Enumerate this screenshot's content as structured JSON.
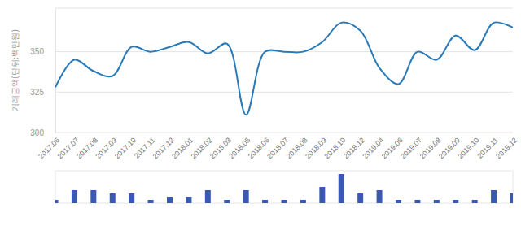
{
  "chart_data": [
    {
      "type": "line",
      "y_label": "거래금액(단위:백만원)",
      "categories": [
        "2017.06",
        "2017.07",
        "2017.08",
        "2017.09",
        "2017.10",
        "2017.11",
        "2017.12",
        "2018.01",
        "2018.02",
        "2018.03",
        "2018.05",
        "2018.06",
        "2018.07",
        "2018.08",
        "2018.09",
        "2018.10",
        "2018.12",
        "2019.04",
        "2019.06",
        "2019.07",
        "2019.08",
        "2019.09",
        "2019.10",
        "2019.11",
        "2019.12"
      ],
      "values": [
        328,
        345,
        338,
        335,
        353,
        350,
        353,
        356,
        349,
        355,
        311,
        350,
        350,
        350,
        356,
        368,
        363,
        340,
        330,
        350,
        345,
        360,
        351,
        368,
        365
      ],
      "color": "#2a7ab8",
      "ylim": [
        300,
        377
      ],
      "yticks": [
        300,
        325,
        350
      ],
      "grid": true
    },
    {
      "type": "bar",
      "values": [
        1,
        4,
        4,
        3,
        3,
        1,
        2,
        2,
        4,
        1,
        4,
        1,
        1,
        1,
        5,
        9,
        3,
        4,
        1,
        1,
        1,
        1,
        1,
        4,
        3
      ],
      "color": "#3b59b3",
      "ylim": [
        0,
        10
      ],
      "tick_labels": false
    }
  ]
}
